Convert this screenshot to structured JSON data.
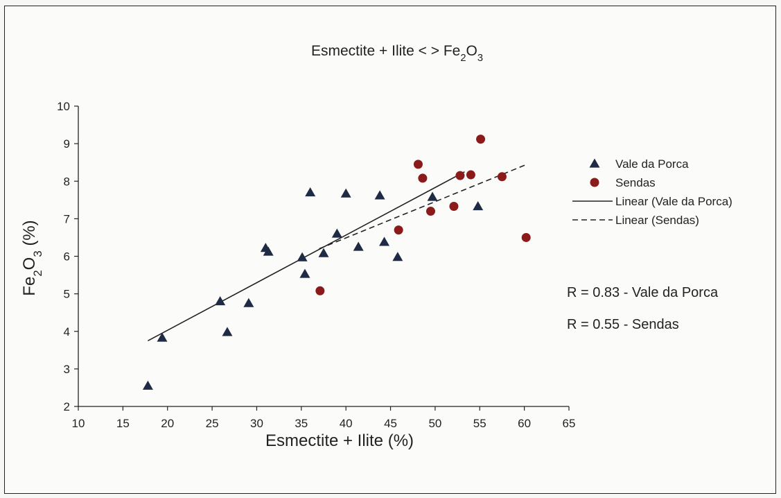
{
  "chart_data": {
    "type": "scatter",
    "title": "Esmectite + Ilite < > Fe₂O₃",
    "xlabel": "Esmectite + Ilite (%)",
    "ylabel": "Fe₂O₃ (%)",
    "xlim": [
      10,
      65
    ],
    "ylim": [
      2,
      10
    ],
    "xticks": [
      10,
      15,
      20,
      25,
      30,
      35,
      40,
      45,
      50,
      55,
      60,
      65
    ],
    "yticks": [
      2,
      3,
      4,
      5,
      6,
      7,
      8,
      9,
      10
    ],
    "grid": false,
    "legend_position": "right",
    "series": [
      {
        "name": "Vale da Porca",
        "marker": "triangle",
        "color": "#1f2a44",
        "points": [
          [
            17.8,
            2.55
          ],
          [
            19.4,
            3.83
          ],
          [
            25.9,
            4.8
          ],
          [
            26.7,
            3.98
          ],
          [
            29.1,
            4.75
          ],
          [
            31.0,
            6.22
          ],
          [
            31.3,
            6.12
          ],
          [
            35.1,
            5.97
          ],
          [
            35.4,
            5.53
          ],
          [
            36.0,
            7.7
          ],
          [
            37.5,
            6.08
          ],
          [
            39.0,
            6.6
          ],
          [
            40.0,
            7.67
          ],
          [
            41.4,
            6.25
          ],
          [
            43.8,
            7.62
          ],
          [
            44.3,
            6.38
          ],
          [
            45.8,
            5.98
          ],
          [
            49.7,
            7.58
          ],
          [
            54.8,
            7.33
          ]
        ]
      },
      {
        "name": "Sendas",
        "marker": "circle",
        "color": "#8b1a1a",
        "points": [
          [
            37.1,
            5.08
          ],
          [
            45.9,
            6.7
          ],
          [
            48.1,
            8.45
          ],
          [
            48.6,
            8.08
          ],
          [
            49.5,
            7.2
          ],
          [
            52.1,
            7.33
          ],
          [
            52.8,
            8.15
          ],
          [
            54.0,
            8.17
          ],
          [
            55.1,
            9.12
          ],
          [
            57.5,
            8.12
          ],
          [
            60.2,
            6.5
          ]
        ]
      }
    ],
    "trendlines": [
      {
        "name": "Linear (Vale da Porca)",
        "style": "solid",
        "x": [
          17.8,
          53.3
        ],
        "y": [
          3.75,
          8.25
        ]
      },
      {
        "name": "Linear (Sendas)",
        "style": "dashed",
        "x": [
          37.0,
          60.3
        ],
        "y": [
          6.2,
          8.45
        ]
      }
    ],
    "annotations": [
      "R = 0.83 - Vale da Porca",
      "R = 0.55 - Sendas"
    ]
  }
}
